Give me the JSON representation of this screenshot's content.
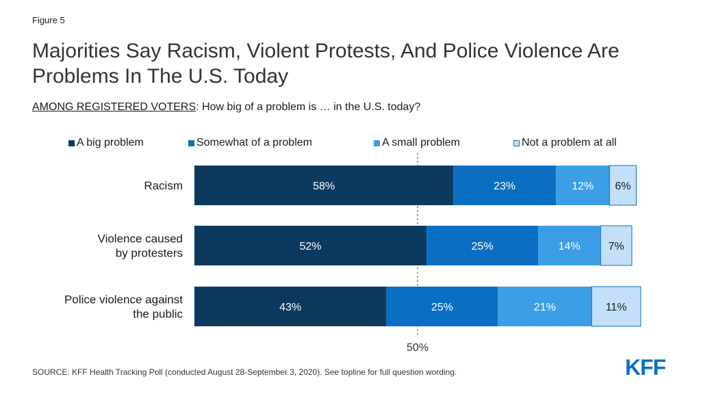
{
  "figure_label": "Figure 5",
  "title": "Majorities Say Racism, Violent Protests, And Police Violence Are Problems In The U.S. Today",
  "subtitle": {
    "underlined": "AMONG REGISTERED VOTERS",
    "rest": ": How big of a problem is … in the U.S. today?"
  },
  "source": "SOURCE: KFF Health Tracking Poll (conducted August 28-September 3, 2020). See topline for full question wording.",
  "logo": "KFF",
  "colors": {
    "big": "#0c3a5f",
    "somewhat": "#0a6fc2",
    "small": "#3d9ee8",
    "none": "#c3e0f8",
    "reference_line": "#555555"
  },
  "chart_data": {
    "type": "bar",
    "orientation": "horizontal",
    "stacked": true,
    "categories": [
      [
        "Racism"
      ],
      [
        "Violence caused",
        "by protesters"
      ],
      [
        "Police violence against",
        "the public"
      ]
    ],
    "series": [
      {
        "name": "A big problem",
        "color_key": "big",
        "values": [
          58,
          52,
          43
        ],
        "labels": [
          "58%",
          "52%",
          "43%"
        ],
        "label_color": "#ffffff"
      },
      {
        "name": "Somewhat of a problem",
        "color_key": "somewhat",
        "values": [
          23,
          25,
          25
        ],
        "labels": [
          "23%",
          "25%",
          "25%"
        ],
        "label_color": "#ffffff"
      },
      {
        "name": "A small problem",
        "color_key": "small",
        "values": [
          12,
          14,
          21
        ],
        "labels": [
          "12%",
          "14%",
          "21%"
        ],
        "label_color": "#ffffff"
      },
      {
        "name": "Not a problem at all",
        "color_key": "none",
        "values": [
          6,
          7,
          11
        ],
        "labels": [
          "6%",
          "7%",
          "11%"
        ],
        "label_color": "#1a1a1a"
      }
    ],
    "reference_line": {
      "value": 50,
      "label": "50%"
    },
    "xlim": [
      0,
      100
    ],
    "legend_position": "top"
  }
}
